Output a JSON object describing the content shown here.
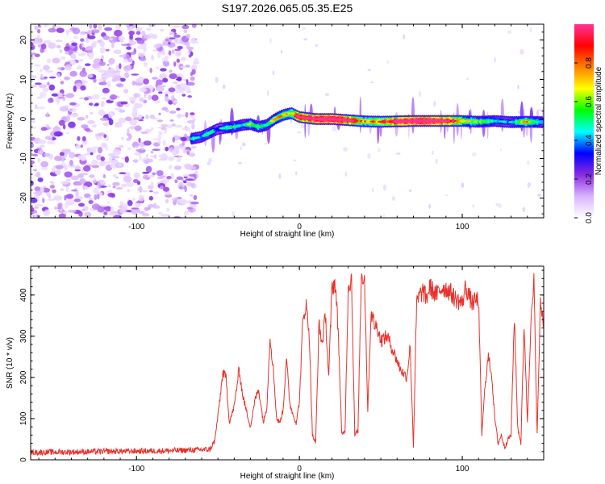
{
  "chart_data": [
    {
      "type": "heatmap",
      "title": "S197.2026.065.05.35.E25",
      "xlabel": "Height of straight line (km)",
      "ylabel": "Frequency (Hz)",
      "xlim": [
        -165,
        150
      ],
      "ylim": [
        -25,
        24
      ],
      "xticks": [
        -100,
        0,
        100
      ],
      "xtick_labels": [
        "-100",
        "0",
        "100"
      ],
      "yticks": [
        -20,
        -10,
        0,
        10,
        20
      ],
      "ytick_labels": [
        "-20",
        "-10",
        "0",
        "10",
        "20"
      ],
      "colorbar": {
        "label": "Normalized spectral amplitude",
        "range": [
          0,
          1
        ],
        "ticks": [
          0.0,
          0.2,
          0.4,
          0.6,
          0.8
        ],
        "tick_labels": [
          "0.0",
          "0.2",
          "0.4",
          "0.6",
          "0.8"
        ],
        "colors": [
          "#ffffff",
          "#d9b3ff",
          "#8a2be2",
          "#0000ff",
          "#00ffff",
          "#00ff00",
          "#ffff00",
          "#ff8000",
          "#ff0000",
          "#ff3399"
        ]
      },
      "noise_region": {
        "x_from": -165,
        "x_to": -65
      },
      "ridge": {
        "x": [
          -66,
          -60,
          -55,
          -50,
          -45,
          -40,
          -35,
          -30,
          -25,
          -20,
          -15,
          -10,
          -5,
          0,
          10,
          20,
          30,
          40,
          50,
          60,
          70,
          80,
          90,
          100,
          110,
          120,
          130,
          140,
          150
        ],
        "freq": [
          -5,
          -4.5,
          -3.5,
          -2.5,
          -2.2,
          -2,
          -1.5,
          -1.3,
          -2,
          -1.5,
          0,
          1,
          1.5,
          0.5,
          0,
          0,
          -0.3,
          -0.6,
          -0.7,
          -0.6,
          -0.5,
          -0.5,
          -0.5,
          -0.5,
          -0.7,
          -0.5,
          -0.8,
          -0.7,
          -0.8
        ],
        "amp": [
          0.35,
          0.3,
          0.4,
          0.25,
          0.35,
          0.4,
          0.3,
          0.45,
          0.4,
          0.35,
          0.5,
          0.55,
          0.5,
          0.85,
          0.9,
          0.95,
          0.9,
          0.55,
          0.6,
          0.85,
          0.9,
          0.95,
          0.85,
          0.55,
          0.45,
          0.35,
          0.3,
          0.55,
          0.3
        ]
      }
    },
    {
      "type": "line",
      "xlabel": "Height of straight line (km)",
      "ylabel": "SNR (10 * v/v)",
      "xlim": [
        -165,
        150
      ],
      "ylim": [
        0,
        470
      ],
      "xticks": [
        -100,
        0,
        100
      ],
      "xtick_labels": [
        "-100",
        "0",
        "100"
      ],
      "yticks": [
        0,
        100,
        200,
        300,
        400
      ],
      "ytick_labels": [
        "0",
        "100",
        "200",
        "300",
        "400"
      ],
      "series": [
        {
          "name": "SNR",
          "color": "#e8302a",
          "x": [
            -165,
            -120,
            -80,
            -55,
            -52,
            -49,
            -47,
            -45,
            -43,
            -40,
            -37,
            -35,
            -32,
            -30,
            -27,
            -25,
            -22,
            -20,
            -18,
            -16,
            -14,
            -12,
            -10,
            -8,
            -6,
            -4,
            -2,
            0,
            2,
            4,
            6,
            8,
            10,
            12,
            14,
            16,
            18,
            20,
            22,
            24,
            26,
            28,
            30,
            32,
            34,
            36,
            38,
            40,
            42,
            44,
            46,
            48,
            50,
            54,
            58,
            62,
            66,
            68,
            70,
            72,
            74,
            76,
            78,
            80,
            84,
            88,
            92,
            96,
            100,
            102,
            104,
            106,
            110,
            112,
            114,
            116,
            118,
            120,
            122,
            124,
            126,
            128,
            130,
            132,
            134,
            136,
            138,
            140,
            142,
            144,
            146,
            148,
            150
          ],
          "y": [
            18,
            20,
            22,
            25,
            45,
            140,
            210,
            200,
            90,
            130,
            220,
            160,
            110,
            80,
            150,
            170,
            90,
            130,
            300,
            220,
            100,
            90,
            120,
            250,
            140,
            110,
            90,
            140,
            330,
            380,
            310,
            60,
            40,
            330,
            280,
            350,
            200,
            420,
            430,
            300,
            60,
            70,
            420,
            440,
            60,
            70,
            450,
            440,
            120,
            360,
            330,
            320,
            290,
            300,
            260,
            220,
            200,
            280,
            30,
            380,
            400,
            410,
            390,
            420,
            400,
            420,
            410,
            390,
            380,
            420,
            400,
            380,
            390,
            60,
            180,
            250,
            210,
            100,
            40,
            60,
            30,
            50,
            60,
            350,
            80,
            40,
            330,
            90,
            320,
            430,
            60,
            380,
            330
          ]
        }
      ]
    }
  ]
}
